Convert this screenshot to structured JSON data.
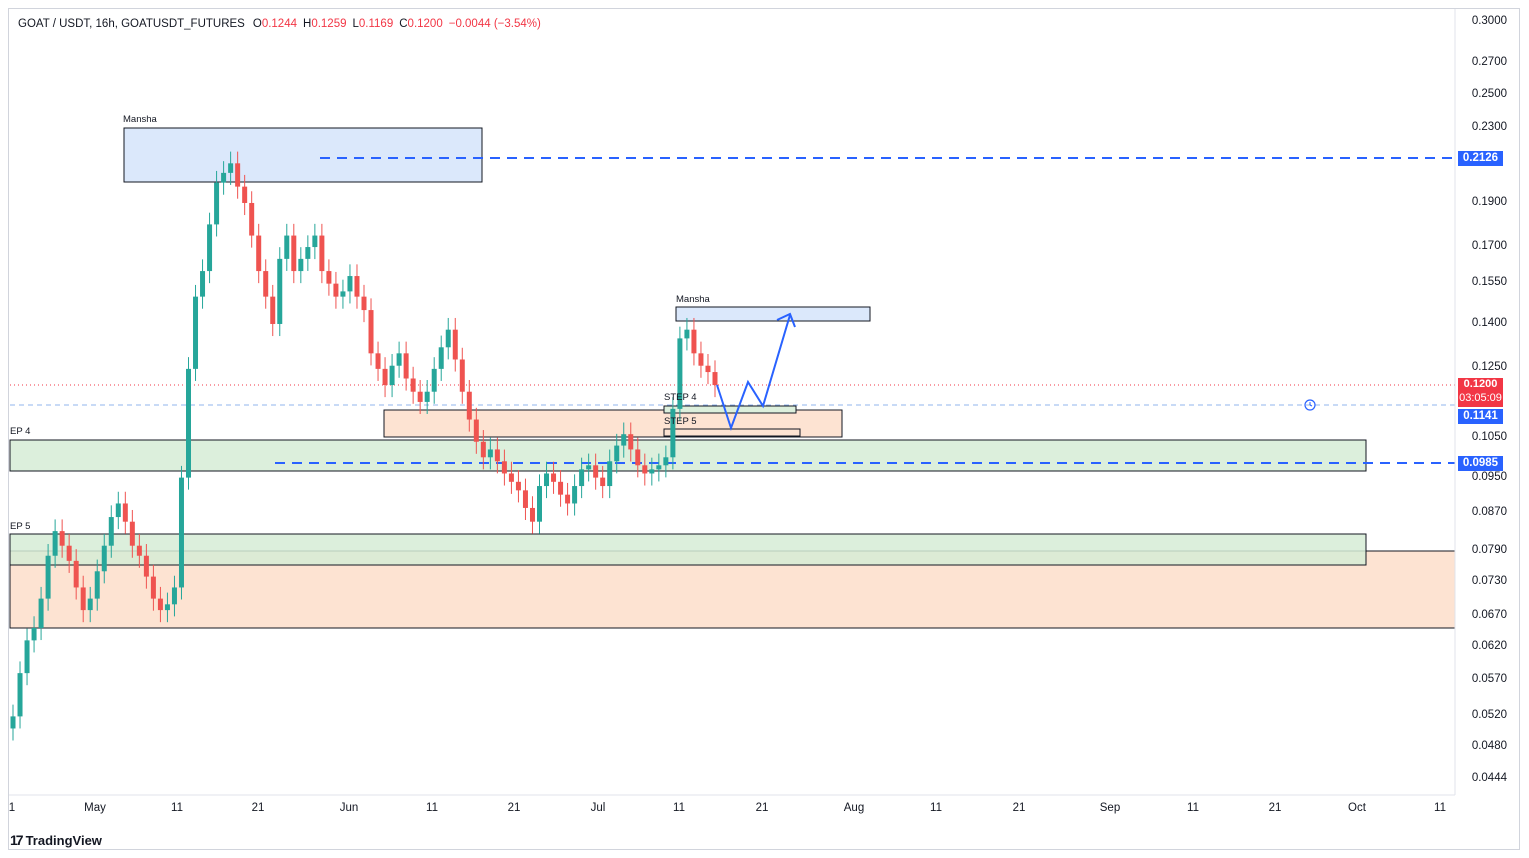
{
  "header": {
    "symbol": "GOAT / USDT, 16h, GOATUSDT_FUTURES",
    "o_key": "O",
    "o_val": "0.1244",
    "h_key": "H",
    "h_val": "0.1259",
    "l_key": "L",
    "l_val": "0.1169",
    "c_key": "C",
    "c_val": "0.1200",
    "change": "−0.0044 (−3.54%)"
  },
  "price_axis": [
    "0.3000",
    "0.2700",
    "0.2500",
    "0.2300",
    "0.2126",
    "0.1900",
    "0.1700",
    "0.1550",
    "0.1400",
    "0.1250",
    "0.1200",
    "0.1141",
    "0.1050",
    "0.0985",
    "0.0950",
    "0.0870",
    "0.0790",
    "0.0730",
    "0.0670",
    "0.0620",
    "0.0570",
    "0.0520",
    "0.0480",
    "0.0444"
  ],
  "price_tags": {
    "resistance": "0.2126",
    "last_price": "0.1200",
    "countdown": "03:05:09",
    "blue_line": "0.1141",
    "support": "0.0985"
  },
  "time_axis": [
    "1",
    "May",
    "11",
    "21",
    "Jun",
    "11",
    "21",
    "Jul",
    "11",
    "21",
    "Aug",
    "11",
    "21",
    "Sep",
    "11",
    "21",
    "Oct",
    "11"
  ],
  "annotations": {
    "zone_top": "Mansha",
    "zone_mid": "Mansha",
    "step4_left": "EP 4",
    "step5_left": "EP 5",
    "step4": "STEP 4",
    "step5": "STEP 5"
  },
  "branding": {
    "logo_text": "TradingView"
  },
  "colors": {
    "up": "#26a69a",
    "down": "#ef5350",
    "zone_blue": "#dbe8fb",
    "zone_green": "#dcefdc",
    "zone_orange": "#fde3d2",
    "dash_blue": "#2962ff",
    "last_price_bg": "#f23645",
    "blue_tag_bg": "#2962ff"
  },
  "chart_data": {
    "type": "candlestick",
    "symbol": "GOATUSDT_FUTURES",
    "interval": "16h",
    "scale": "log",
    "y_range": [
      0.0444,
      0.3
    ],
    "last": {
      "open": 0.1244,
      "high": 0.1259,
      "low": 0.1169,
      "close": 0.12
    },
    "horizontal_lines": [
      {
        "price": 0.2126,
        "style": "dashed",
        "color": "#2962ff"
      },
      {
        "price": 0.0985,
        "style": "dashed",
        "color": "#2962ff"
      },
      {
        "price": 0.1141,
        "style": "dashed",
        "color": "#90b6ec"
      },
      {
        "price": 0.12,
        "style": "dotted",
        "color": "#f23645"
      }
    ],
    "closes_approx": [
      0.052,
      0.058,
      0.063,
      0.065,
      0.07,
      0.078,
      0.083,
      0.08,
      0.077,
      0.072,
      0.068,
      0.07,
      0.075,
      0.08,
      0.086,
      0.089,
      0.085,
      0.08,
      0.078,
      0.074,
      0.07,
      0.068,
      0.069,
      0.072,
      0.095,
      0.125,
      0.15,
      0.16,
      0.18,
      0.2,
      0.205,
      0.21,
      0.198,
      0.19,
      0.175,
      0.16,
      0.15,
      0.14,
      0.165,
      0.175,
      0.16,
      0.165,
      0.17,
      0.175,
      0.16,
      0.155,
      0.15,
      0.152,
      0.158,
      0.15,
      0.145,
      0.13,
      0.125,
      0.12,
      0.126,
      0.13,
      0.122,
      0.118,
      0.115,
      0.118,
      0.125,
      0.132,
      0.138,
      0.128,
      0.118,
      0.11,
      0.104,
      0.1,
      0.102,
      0.099,
      0.096,
      0.094,
      0.092,
      0.088,
      0.085,
      0.093,
      0.096,
      0.094,
      0.091,
      0.089,
      0.093,
      0.097,
      0.098,
      0.095,
      0.093,
      0.099,
      0.103,
      0.106,
      0.102,
      0.098,
      0.096,
      0.097,
      0.098,
      0.1,
      0.113,
      0.135,
      0.138,
      0.13,
      0.126,
      0.124,
      0.12
    ]
  }
}
